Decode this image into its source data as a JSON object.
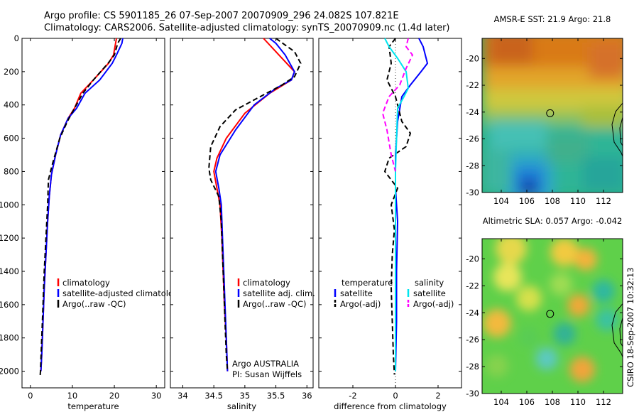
{
  "header": {
    "line1": "Argo profile: CS 5901185_26 07-Sep-2007 20070909_296 24.082S 107.821E",
    "line2": "Climatology: CARS2006. Satellite-adjusted climatology: synTS_20070909.nc (1.4d later)"
  },
  "stamp": "CSIRO 18-Sep-2007 10:32:13",
  "chart_data": [
    {
      "type": "line",
      "id": "temperature",
      "xlabel": "temperature",
      "xticks": [
        0,
        10,
        20,
        30
      ],
      "xlim": [
        -2,
        32
      ],
      "ylim": [
        2100,
        0
      ],
      "yticks": [
        0,
        200,
        400,
        600,
        800,
        1000,
        1200,
        1400,
        1600,
        1800,
        2000
      ],
      "legend": {
        "position": "lower-center",
        "entries": [
          "climatology",
          "satellite-adjusted climatology",
          "Argo(..raw -QC)"
        ]
      },
      "series": [
        {
          "name": "climatology",
          "color": "#ff0000",
          "dash": "solid",
          "points": [
            [
              20.5,
              0
            ],
            [
              19.8,
              100
            ],
            [
              18.6,
              150
            ],
            [
              15,
              250
            ],
            [
              12,
              330
            ],
            [
              10.5,
              420
            ],
            [
              9,
              480
            ],
            [
              7.2,
              580
            ],
            [
              6,
              700
            ],
            [
              5,
              820
            ],
            [
              4.5,
              950
            ],
            [
              4.1,
              1100
            ],
            [
              3.7,
              1300
            ],
            [
              3.3,
              1500
            ],
            [
              3,
              1700
            ],
            [
              2.7,
              1900
            ],
            [
              2.5,
              2000
            ]
          ]
        },
        {
          "name": "satellite-adjusted climatology",
          "color": "#0000ff",
          "dash": "solid",
          "points": [
            [
              22,
              0
            ],
            [
              21.8,
              30
            ],
            [
              20.5,
              100
            ],
            [
              19.5,
              150
            ],
            [
              16.5,
              250
            ],
            [
              13,
              330
            ],
            [
              11,
              420
            ],
            [
              9,
              480
            ],
            [
              7.2,
              580
            ],
            [
              6,
              700
            ],
            [
              5,
              820
            ],
            [
              4.5,
              950
            ],
            [
              4.1,
              1100
            ],
            [
              3.7,
              1300
            ],
            [
              3.3,
              1500
            ],
            [
              3,
              1700
            ],
            [
              2.7,
              1900
            ],
            [
              2.5,
              2000
            ]
          ]
        },
        {
          "name": "Argo(..raw -QC)",
          "color": "#000000",
          "dash": "dashed",
          "points": [
            [
              21.5,
              0
            ],
            [
              20.8,
              30
            ],
            [
              20,
              100
            ],
            [
              18.5,
              150
            ],
            [
              15,
              250
            ],
            [
              12.5,
              330
            ],
            [
              10.5,
              420
            ],
            [
              8.8,
              500
            ],
            [
              7,
              600
            ],
            [
              5.3,
              750
            ],
            [
              4.3,
              850
            ],
            [
              4.1,
              1000
            ],
            [
              3.7,
              1200
            ],
            [
              3.3,
              1400
            ],
            [
              3,
              1600
            ],
            [
              2.7,
              1800
            ],
            [
              2.4,
              2000
            ],
            [
              2.3,
              2040
            ]
          ]
        }
      ]
    },
    {
      "type": "line",
      "id": "salinity",
      "xlabel": "salinity",
      "xticks": [
        34,
        34.5,
        35,
        35.5,
        36
      ],
      "xlim": [
        33.8,
        36.1
      ],
      "ylim": [
        2100,
        0
      ],
      "legend": {
        "position": "lower-center",
        "entries": [
          "climatology",
          "satellite adj. clim.",
          "Argo(..raw -QC)"
        ]
      },
      "annotation": [
        "Argo AUSTRALIA",
        "PI: Susan Wijffels"
      ],
      "series": [
        {
          "name": "climatology",
          "color": "#ff0000",
          "dash": "solid",
          "points": [
            [
              35.3,
              0
            ],
            [
              35.55,
              100
            ],
            [
              35.8,
              200
            ],
            [
              35.75,
              250
            ],
            [
              35.4,
              330
            ],
            [
              35,
              450
            ],
            [
              34.7,
              600
            ],
            [
              34.55,
              720
            ],
            [
              34.5,
              800
            ],
            [
              34.55,
              900
            ],
            [
              34.6,
              1000
            ],
            [
              34.63,
              1200
            ],
            [
              34.65,
              1400
            ],
            [
              34.67,
              1600
            ],
            [
              34.7,
              1800
            ],
            [
              34.72,
              2000
            ]
          ]
        },
        {
          "name": "satellite adj. clim.",
          "color": "#0000ff",
          "dash": "solid",
          "points": [
            [
              35.4,
              0
            ],
            [
              35.5,
              30
            ],
            [
              35.65,
              100
            ],
            [
              35.8,
              200
            ],
            [
              35.75,
              250
            ],
            [
              35.5,
              300
            ],
            [
              35.15,
              400
            ],
            [
              34.85,
              550
            ],
            [
              34.6,
              700
            ],
            [
              34.53,
              800
            ],
            [
              34.58,
              900
            ],
            [
              34.62,
              1000
            ],
            [
              34.64,
              1200
            ],
            [
              34.66,
              1400
            ],
            [
              34.68,
              1600
            ],
            [
              34.7,
              1800
            ],
            [
              34.72,
              2000
            ]
          ]
        },
        {
          "name": "Argo(..raw -QC)",
          "color": "#000000",
          "dash": "dashed",
          "points": [
            [
              35.5,
              0
            ],
            [
              35.65,
              40
            ],
            [
              35.8,
              80
            ],
            [
              35.9,
              150
            ],
            [
              35.8,
              230
            ],
            [
              35.6,
              280
            ],
            [
              35.2,
              360
            ],
            [
              34.85,
              430
            ],
            [
              34.6,
              530
            ],
            [
              34.45,
              650
            ],
            [
              34.42,
              780
            ],
            [
              34.45,
              850
            ],
            [
              34.58,
              950
            ],
            [
              34.62,
              1100
            ],
            [
              34.64,
              1300
            ],
            [
              34.66,
              1500
            ],
            [
              34.68,
              1700
            ],
            [
              34.7,
              1900
            ],
            [
              34.72,
              2000
            ]
          ]
        }
      ]
    },
    {
      "type": "line",
      "id": "difference",
      "xlabel": "difference from climatology",
      "xticks": [
        -2,
        0,
        2
      ],
      "xlim": [
        -3.6,
        3.1
      ],
      "ylim": [
        2100,
        0
      ],
      "legend": {
        "position": "lower",
        "headers": [
          "temperature",
          "salinity"
        ],
        "entries": [
          "satellite",
          "Argo(-adj)",
          "satellite",
          "Argo(-adj)"
        ]
      },
      "series": [
        {
          "name": "temperature satellite",
          "color": "#0000ff",
          "dash": "solid",
          "points": [
            [
              1.1,
              0
            ],
            [
              1.3,
              50
            ],
            [
              1.5,
              150
            ],
            [
              1.2,
              200
            ],
            [
              0.7,
              280
            ],
            [
              0.3,
              350
            ],
            [
              0.1,
              500
            ],
            [
              0,
              700
            ],
            [
              0,
              900
            ],
            [
              0.1,
              1100
            ],
            [
              0.05,
              1400
            ],
            [
              0.05,
              1700
            ],
            [
              0,
              2000
            ]
          ]
        },
        {
          "name": "temperature Argo(-adj)",
          "color": "#000000",
          "dash": "dashed",
          "points": [
            [
              0,
              0
            ],
            [
              -0.3,
              50
            ],
            [
              -0.2,
              150
            ],
            [
              -0.4,
              250
            ],
            [
              0,
              350
            ],
            [
              0.3,
              500
            ],
            [
              0.7,
              570
            ],
            [
              0.5,
              650
            ],
            [
              -0.3,
              720
            ],
            [
              -0.5,
              800
            ],
            [
              0.1,
              900
            ],
            [
              -0.2,
              1000
            ],
            [
              -0.05,
              1150
            ],
            [
              -0.15,
              1300
            ],
            [
              -0.2,
              1500
            ],
            [
              -0.15,
              1700
            ],
            [
              -0.1,
              1900
            ],
            [
              -0.05,
              2020
            ]
          ]
        },
        {
          "name": "salinity satellite",
          "color": "#00e5ee",
          "dash": "solid",
          "points": [
            [
              -0.5,
              0
            ],
            [
              -0.3,
              50
            ],
            [
              0.1,
              120
            ],
            [
              0.5,
              200
            ],
            [
              0.6,
              300
            ],
            [
              0.4,
              350
            ],
            [
              0.1,
              420
            ],
            [
              0.05,
              600
            ],
            [
              0,
              800
            ],
            [
              0,
              1000
            ],
            [
              0,
              1400
            ],
            [
              0,
              1800
            ],
            [
              0,
              2000
            ]
          ]
        },
        {
          "name": "salinity Argo(-adj)",
          "color": "#ff00ff",
          "dash": "dashed",
          "points": [
            [
              0.6,
              0
            ],
            [
              0.5,
              50
            ],
            [
              0.8,
              100
            ],
            [
              0.5,
              180
            ],
            [
              0.2,
              280
            ],
            [
              -0.3,
              350
            ],
            [
              -0.6,
              450
            ],
            [
              -0.4,
              550
            ],
            [
              -0.2,
              700
            ],
            [
              0,
              800
            ]
          ]
        }
      ]
    },
    {
      "type": "heatmap",
      "id": "sst-map",
      "title": "AMSR-E SST: 21.9 Argo: 21.8",
      "xticks": [
        104,
        106,
        108,
        110,
        112
      ],
      "yticks": [
        -20,
        -22,
        -24,
        -26,
        -28,
        -30
      ],
      "xlim": [
        102.5,
        113.5
      ],
      "ylim": [
        -30,
        -18.5
      ],
      "marker": {
        "lon": 107.821,
        "lat": -24.082
      },
      "colormap": "jet"
    },
    {
      "type": "heatmap",
      "id": "sla-map",
      "title": "Altimetric SLA: 0.057 Argo: -0.042",
      "xticks": [
        104,
        106,
        108,
        110,
        112
      ],
      "yticks": [
        -20,
        -22,
        -24,
        -26,
        -28,
        -30
      ],
      "xlim": [
        102.5,
        113.5
      ],
      "ylim": [
        -30,
        -18.5
      ],
      "marker": {
        "lon": 107.821,
        "lat": -24.082
      },
      "colormap": "jet"
    }
  ]
}
